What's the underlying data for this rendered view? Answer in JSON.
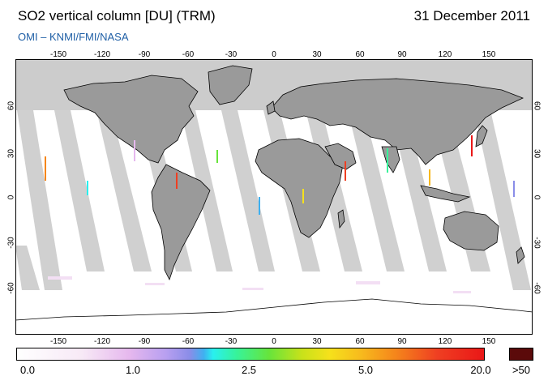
{
  "header": {
    "title": "SO2 vertical column [DU] (TRM)",
    "date": "31 December 2011",
    "credit": "OMI  –  KNMI/FMI/NASA"
  },
  "map": {
    "lon_ticks": [
      "-150",
      "-120",
      "-90",
      "-60",
      "-30",
      "0",
      "30",
      "60",
      "90",
      "120",
      "150"
    ],
    "lat_ticks": [
      "60",
      "30",
      "0",
      "-30",
      "-60"
    ]
  },
  "colorbar": {
    "labels": [
      "0.0",
      "1.0",
      "2.5",
      "5.0",
      "20.0"
    ],
    "overflow_label": ">50",
    "overflow_color": "#5b0a0a"
  }
}
